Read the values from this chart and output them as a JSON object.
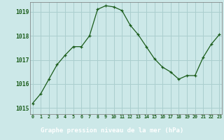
{
  "x": [
    0,
    1,
    2,
    3,
    4,
    5,
    6,
    7,
    8,
    9,
    10,
    11,
    12,
    13,
    14,
    15,
    16,
    17,
    18,
    19,
    20,
    21,
    22,
    23
  ],
  "y": [
    1015.2,
    1015.6,
    1016.2,
    1016.8,
    1017.2,
    1017.55,
    1017.55,
    1018.0,
    1019.1,
    1019.25,
    1019.2,
    1019.05,
    1018.45,
    1018.05,
    1017.55,
    1017.05,
    1016.7,
    1016.5,
    1016.2,
    1016.35,
    1016.35,
    1017.1,
    1017.65,
    1018.05
  ],
  "ylim_bottom": 1014.75,
  "ylim_top": 1019.4,
  "yticks": [
    1015,
    1016,
    1017,
    1018,
    1019
  ],
  "xticks": [
    0,
    1,
    2,
    3,
    4,
    5,
    6,
    7,
    8,
    9,
    10,
    11,
    12,
    13,
    14,
    15,
    16,
    17,
    18,
    19,
    20,
    21,
    22,
    23
  ],
  "line_color": "#1a5c1a",
  "marker_color": "#1a5c1a",
  "bg_color": "#cce8e8",
  "grid_color": "#aacece",
  "xlabel": "Graphe pression niveau de la mer (hPa)",
  "tick_color": "#1a5c1a",
  "bottom_bar_color": "#1a5c1a",
  "bottom_text_color": "#ffffff"
}
